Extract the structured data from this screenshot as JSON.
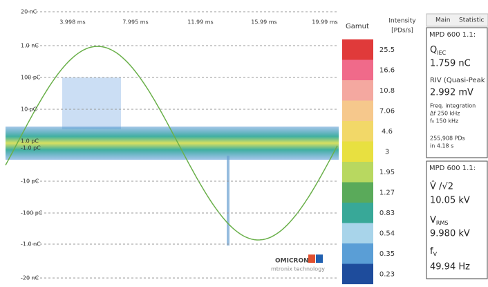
{
  "plot": {
    "y_labels": [
      "20 nC",
      "1.0 nC",
      "100 pC",
      "10 pC",
      "1.0 pC",
      "-1.0 pC",
      "-10 pC",
      "-100 pC",
      "-1.0 nC",
      "-20 nC"
    ],
    "x_labels": [
      "3.998 ms",
      "7.995 ms",
      "11.99 ms",
      "15.99 ms",
      "19.99 ms"
    ],
    "logo": "OMICRON",
    "logo_sub": "mtronix technology"
  },
  "gamut": {
    "title": "Gamut",
    "unit_title": "Intensity",
    "unit": "[PDs/s]",
    "levels": [
      "25.5",
      "16.6",
      "10.8",
      "7.06",
      "4.6",
      "3",
      "1.95",
      "1.27",
      "0.83",
      "0.54",
      "0.35",
      "0.23"
    ]
  },
  "tabs": [
    "Main",
    "Statistic"
  ],
  "panels": [
    {
      "header": "MPD 600 1.1:",
      "charge": {
        "symbol": "Q",
        "sub": "IEC"
      },
      "charge_value": "1.759 nC",
      "riv": "RIV (Quasi-Peak",
      "riv_value": "2.992 mV",
      "freq_title": "Freq. integration",
      "df": "Δf 250 kHz",
      "f0": "f₀ 150 kHz",
      "count": "255,908 PDs",
      "duration": "in 4.18 s"
    },
    {
      "header": "MPD 600 1.1:",
      "peak": "V̂ /√2",
      "peak_value": "10.05 kV",
      "rms": {
        "symbol": "V",
        "sub": "RMS"
      },
      "rms_value": "9.980 kV",
      "freq": {
        "symbol": "f",
        "sub": "V"
      },
      "freq_value": "49.94 Hz"
    }
  ]
}
